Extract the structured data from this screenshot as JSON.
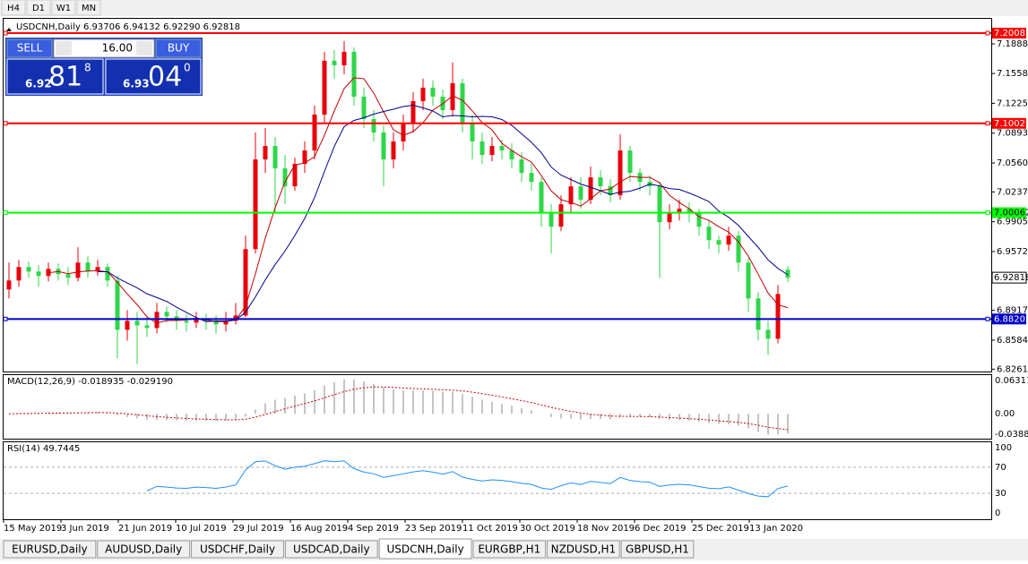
{
  "toolbar": {
    "timeframes": [
      "H4",
      "D1",
      "W1",
      "MN"
    ]
  },
  "trade_panel": {
    "sell": "SELL",
    "buy": "BUY",
    "volume": "16.00",
    "bid_big": "6.92",
    "bid_main": "81",
    "bid_small": "8",
    "ask_big": "6.93",
    "ask_main": "04",
    "ask_small": "0"
  },
  "tabs": [
    "EURUSD,Daily",
    "AUDUSD,Daily",
    "USDCHF,Daily",
    "USDCAD,Daily",
    "USDCNH,Daily",
    "EURGBP,H1",
    "NZDUSD,H1",
    "GBPUSD,H1"
  ],
  "active_tab": 4,
  "chart_data": {
    "type": "candlestick",
    "title": "USDCNH,Daily  6.93706 6.94132 6.92290 6.92818",
    "up_color": "#e8000b",
    "down_color": "#2fd64a",
    "x_labels": [
      "15 May 2019",
      "3 Jun 2019",
      "21 Jun 2019",
      "10 Jul 2019",
      "29 Jul 2019",
      "16 Aug 2019",
      "4 Sep 2019",
      "23 Sep 2019",
      "11 Oct 2019",
      "30 Oct 2019",
      "18 Nov 2019",
      "6 Dec 2019",
      "25 Dec 2019",
      "13 Jan 2020"
    ],
    "open": [
      6.915,
      6.925,
      6.94,
      6.935,
      6.93,
      6.938,
      6.932,
      6.928,
      6.945,
      6.935,
      6.94,
      6.925,
      6.87,
      6.88,
      6.875,
      6.872,
      6.89,
      6.885,
      6.88,
      6.878,
      6.882,
      6.88,
      6.876,
      6.88,
      6.886,
      6.96,
      7.06,
      7.075,
      7.05,
      7.03,
      7.055,
      7.07,
      7.11,
      7.17,
      7.165,
      7.18,
      7.13,
      7.105,
      7.09,
      7.06,
      7.08,
      7.1,
      7.125,
      7.14,
      7.13,
      7.115,
      7.145,
      7.1,
      7.08,
      7.065,
      7.075,
      7.07,
      7.06,
      7.045,
      7.035,
      7.0,
      6.985,
      7.01,
      7.03,
      7.015,
      7.04,
      7.03,
      7.02,
      7.07,
      7.045,
      7.035,
      7.03,
      6.99,
      7.0,
      7.005,
      7.0,
      6.985,
      6.97,
      6.965,
      6.975,
      6.945,
      6.905,
      6.87,
      6.86,
      6.93706
    ],
    "high": [
      6.945,
      6.948,
      6.946,
      6.942,
      6.945,
      6.944,
      6.94,
      6.962,
      6.952,
      6.948,
      6.944,
      6.93,
      6.892,
      6.89,
      6.885,
      6.9,
      6.896,
      6.892,
      6.888,
      6.89,
      6.888,
      6.886,
      6.89,
      6.9,
      6.975,
      7.09,
      7.095,
      7.085,
      7.065,
      7.062,
      7.08,
      7.12,
      7.18,
      7.182,
      7.192,
      7.185,
      7.14,
      7.115,
      7.098,
      7.09,
      7.11,
      7.135,
      7.15,
      7.148,
      7.138,
      7.168,
      7.15,
      7.11,
      7.09,
      7.085,
      7.082,
      7.078,
      7.068,
      7.055,
      7.04,
      7.01,
      7.02,
      7.04,
      7.04,
      7.052,
      7.048,
      7.038,
      7.088,
      7.075,
      7.05,
      7.042,
      7.035,
      7.01,
      7.015,
      7.012,
      7.005,
      6.992,
      6.975,
      6.985,
      6.98,
      6.95,
      6.912,
      6.88,
      6.92,
      6.94132
    ],
    "low": [
      6.905,
      6.918,
      6.928,
      6.918,
      6.924,
      6.925,
      6.92,
      6.924,
      6.928,
      6.93,
      6.918,
      6.838,
      6.858,
      6.832,
      6.862,
      6.866,
      6.878,
      6.87,
      6.868,
      6.872,
      6.87,
      6.866,
      6.868,
      6.876,
      6.884,
      6.955,
      7.045,
      7.0,
      7.01,
      7.025,
      7.045,
      7.06,
      7.1,
      7.15,
      7.155,
      7.12,
      7.095,
      7.08,
      7.03,
      7.05,
      7.07,
      7.09,
      7.115,
      7.12,
      7.105,
      7.108,
      7.09,
      7.06,
      7.055,
      7.058,
      7.06,
      7.05,
      7.035,
      7.025,
      6.985,
      6.955,
      6.98,
      7.0,
      7.005,
      7.01,
      7.02,
      7.012,
      7.015,
      7.035,
      7.025,
      7.02,
      6.928,
      6.982,
      6.992,
      6.99,
      6.975,
      6.96,
      6.955,
      6.958,
      6.935,
      6.89,
      6.858,
      6.842,
      6.855,
      6.9229
    ],
    "close": [
      6.925,
      6.94,
      6.935,
      6.93,
      6.938,
      6.932,
      6.928,
      6.945,
      6.935,
      6.94,
      6.925,
      6.87,
      6.88,
      6.875,
      6.872,
      6.89,
      6.885,
      6.88,
      6.878,
      6.882,
      6.88,
      6.876,
      6.88,
      6.886,
      6.96,
      7.06,
      7.075,
      7.05,
      7.03,
      7.055,
      7.07,
      7.11,
      7.17,
      7.165,
      7.18,
      7.13,
      7.105,
      7.09,
      7.06,
      7.08,
      7.1,
      7.125,
      7.14,
      7.13,
      7.115,
      7.145,
      7.1,
      7.08,
      7.065,
      7.075,
      7.07,
      7.06,
      7.045,
      7.035,
      7.0,
      6.985,
      7.01,
      7.03,
      7.015,
      7.04,
      7.03,
      7.02,
      7.07,
      7.045,
      7.035,
      7.03,
      6.99,
      7.0,
      7.005,
      7.0,
      6.985,
      6.97,
      6.965,
      6.975,
      6.945,
      6.905,
      6.87,
      6.86,
      6.91,
      6.92818
    ],
    "ylim": [
      6.8235,
      7.2178
    ],
    "yticks": [
      7.18881,
      {
        "value": 7.1558,
        "label": "7.15580"
      },
      7.12255,
      7.0893,
      7.05605,
      7.02375,
      {
        "value": 6.9905,
        "label": "6.99050"
      },
      6.95725,
      {
        "value": 6.8917,
        "label": "6.89170"
      },
      6.85845,
      6.82615
    ],
    "ma": [
      {
        "period": 5,
        "color": "#c00000"
      },
      {
        "period": 10,
        "color": "#00008b"
      }
    ],
    "levels": [
      {
        "value": 7.20085,
        "color": "#ff0000"
      },
      {
        "value": 7.10023,
        "color": "#ff0000"
      },
      {
        "value": 7.00062,
        "color": "#00ff00"
      },
      {
        "value": 6.88207,
        "color": "#0000c8"
      }
    ],
    "current_price": 6.92818,
    "macd": {
      "label": "MACD(12,26,9) -0.018935 -0.029190",
      "params": [
        12,
        26,
        9
      ],
      "ylim": [
        -0.047,
        0.0747
      ],
      "yticks": [
        0.063113,
        {
          "value": 0,
          "label": "0.00"
        },
        -0.03887
      ],
      "hist_color": "#b0b0b0",
      "signal_color": "#d00000"
    },
    "rsi": {
      "label": "RSI(14) 49.7445",
      "period": 14,
      "ylim": [
        -9.6,
        109.6
      ],
      "yticks": [
        100,
        70,
        30,
        0
      ],
      "levels": [
        70,
        30
      ],
      "color": "#1e90ff"
    }
  }
}
